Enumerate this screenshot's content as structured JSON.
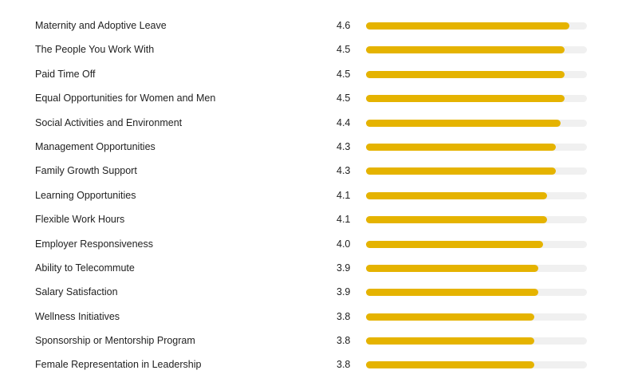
{
  "chart_data": {
    "type": "bar",
    "orientation": "horizontal",
    "title": "",
    "xlabel": "",
    "ylabel": "",
    "xlim": [
      0,
      5
    ],
    "grid": false,
    "categories": [
      "Maternity and Adoptive Leave",
      "The People You Work With",
      "Paid Time Off",
      "Equal Opportunities for Women and Men",
      "Social Activities and Environment",
      "Management Opportunities",
      "Family Growth Support",
      "Learning Opportunities",
      "Flexible Work Hours",
      "Employer Responsiveness",
      "Ability to Telecommute",
      "Salary Satisfaction",
      "Wellness Initiatives",
      "Sponsorship or Mentorship Program",
      "Female Representation in Leadership"
    ],
    "values": [
      4.6,
      4.5,
      4.5,
      4.5,
      4.4,
      4.3,
      4.3,
      4.1,
      4.1,
      4.0,
      3.9,
      3.9,
      3.8,
      3.8,
      3.8
    ],
    "value_labels": [
      "4.6",
      "4.5",
      "4.5",
      "4.5",
      "4.4",
      "4.3",
      "4.3",
      "4.1",
      "4.1",
      "4.0",
      "3.9",
      "3.9",
      "3.8",
      "3.8",
      "3.8"
    ]
  },
  "colors": {
    "bar": "#e5b300",
    "track": "#f0f0f0",
    "text": "#222222"
  }
}
